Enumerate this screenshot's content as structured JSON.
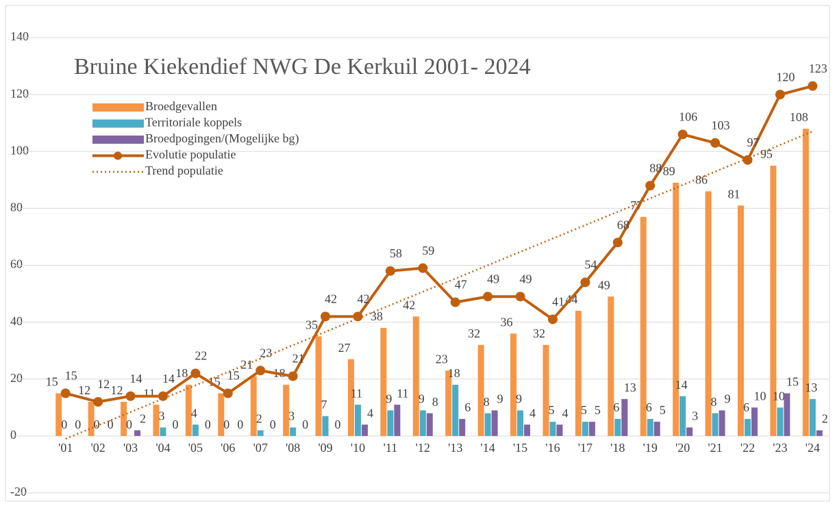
{
  "chart_data": {
    "type": "bar",
    "title": "Bruine Kiekendief NWG De Kerkuil 2001- 2024",
    "categories": [
      "'01",
      "'02",
      "'03",
      "'04",
      "'05",
      "'06",
      "'07",
      "'08",
      "'09",
      "'10",
      "'11",
      "'12",
      "'13",
      "'14",
      "'15",
      "'16",
      "'17",
      "'18",
      "'19",
      "'20",
      "'21",
      "'22",
      "'23",
      "'24"
    ],
    "series": [
      {
        "name": "Broedgevallen",
        "type": "bar",
        "color": "#f79646",
        "values": [
          15,
          12,
          12,
          11,
          18,
          15,
          21,
          18,
          35,
          27,
          38,
          42,
          23,
          32,
          36,
          32,
          44,
          49,
          77,
          89,
          86,
          81,
          95,
          108
        ]
      },
      {
        "name": "Territoriale koppels",
        "type": "bar",
        "color": "#4bacc6",
        "values": [
          0,
          0,
          0,
          3,
          4,
          0,
          2,
          3,
          7,
          11,
          9,
          9,
          18,
          8,
          9,
          5,
          5,
          6,
          6,
          14,
          8,
          6,
          10,
          13
        ]
      },
      {
        "name": "Broedpogingen/(Mogelijke bg)",
        "type": "bar",
        "color": "#8064a2",
        "values": [
          0,
          0,
          2,
          0,
          0,
          0,
          0,
          0,
          0,
          4,
          11,
          8,
          6,
          9,
          4,
          4,
          5,
          13,
          5,
          3,
          9,
          10,
          15,
          2
        ]
      },
      {
        "name": "Evolutie populatie",
        "type": "line",
        "color": "#c0600f",
        "values": [
          15,
          12,
          14,
          14,
          22,
          15,
          23,
          21,
          42,
          42,
          58,
          59,
          47,
          49,
          49,
          41,
          54,
          68,
          88,
          106,
          103,
          97,
          120,
          123
        ]
      },
      {
        "name": "Trend populatie",
        "type": "trend",
        "color": "#c0600f",
        "values": [
          -1,
          3.7,
          8.4,
          13.1,
          17.8,
          22.5,
          27.2,
          31.9,
          36.6,
          41.3,
          46.0,
          50.7,
          55.3,
          60.0,
          64.7,
          69.4,
          74.1,
          78.8,
          83.5,
          88.2,
          92.9,
          97.6,
          102.3,
          107.0
        ]
      }
    ],
    "ylim": [
      -20,
      140
    ],
    "yticks": [
      -20,
      0,
      20,
      40,
      60,
      80,
      100,
      120,
      140
    ],
    "grid": true,
    "legend": "top-left"
  }
}
